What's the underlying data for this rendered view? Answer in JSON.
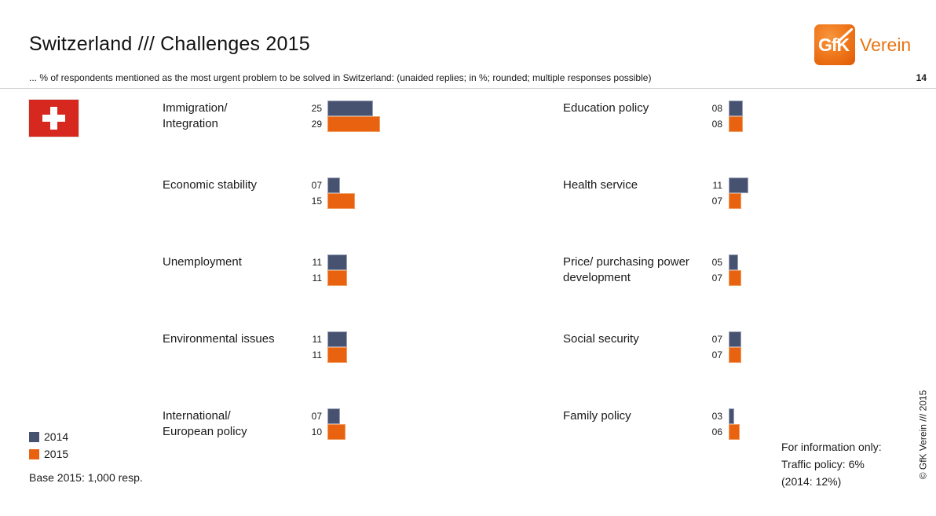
{
  "slide": {
    "title": "Switzerland /// Challenges 2015",
    "subtitle": "... % of respondents mentioned as the most urgent problem to be solved in Switzerland: (unaided replies; in %; rounded; multiple responses possible)",
    "page_number": "14"
  },
  "logo": {
    "square_text": "GfK",
    "word": "Verein"
  },
  "icons": {
    "flag": "swiss-flag-icon",
    "logo": "gfk-logo",
    "logo_slash": "diagonal-slash-icon"
  },
  "colors": {
    "series_2014": "#475271",
    "series_2015": "#E8620F",
    "logo_orange": "#E87512",
    "flag_red": "#D6281E"
  },
  "legend": {
    "year_2014": "2014",
    "year_2015": "2015"
  },
  "footnotes": {
    "base": "Base 2015: 1,000 resp.",
    "info_line1": "For information only:",
    "info_line2": "Traffic policy: 6%",
    "info_line3": "(2014: 12%)",
    "copyright": "© GfK Verein /// 2015"
  },
  "chart_data": {
    "type": "bar",
    "orientation": "horizontal",
    "unit": "%",
    "series": [
      "2014",
      "2015"
    ],
    "value_format": "zero-padded-2-digit",
    "legend_position": "bottom-left",
    "columns": {
      "left": [
        {
          "label_line1": "Immigration/",
          "label_line2": "Integration",
          "values": {
            "2014": 25,
            "2015": 29
          },
          "display": {
            "2014": "25",
            "2015": "29"
          }
        },
        {
          "label_line1": "Economic stability",
          "label_line2": "",
          "values": {
            "2014": 7,
            "2015": 15
          },
          "display": {
            "2014": "07",
            "2015": "15"
          }
        },
        {
          "label_line1": "Unemployment",
          "label_line2": "",
          "values": {
            "2014": 11,
            "2015": 11
          },
          "display": {
            "2014": "11",
            "2015": "11"
          }
        },
        {
          "label_line1": "Environmental issues",
          "label_line2": "",
          "values": {
            "2014": 11,
            "2015": 11
          },
          "display": {
            "2014": "11",
            "2015": "11"
          }
        },
        {
          "label_line1": "International/",
          "label_line2": "European policy",
          "values": {
            "2014": 7,
            "2015": 10
          },
          "display": {
            "2014": "07",
            "2015": "10"
          }
        }
      ],
      "right": [
        {
          "label_line1": "Education policy",
          "label_line2": "",
          "values": {
            "2014": 8,
            "2015": 8
          },
          "display": {
            "2014": "08",
            "2015": "08"
          }
        },
        {
          "label_line1": "Health service",
          "label_line2": "",
          "values": {
            "2014": 11,
            "2015": 7
          },
          "display": {
            "2014": "11",
            "2015": "07"
          }
        },
        {
          "label_line1": "Price/ purchasing power",
          "label_line2": "development",
          "values": {
            "2014": 5,
            "2015": 7
          },
          "display": {
            "2014": "05",
            "2015": "07"
          }
        },
        {
          "label_line1": "Social security",
          "label_line2": "",
          "values": {
            "2014": 7,
            "2015": 7
          },
          "display": {
            "2014": "07",
            "2015": "07"
          }
        },
        {
          "label_line1": "Family policy",
          "label_line2": "",
          "values": {
            "2014": 3,
            "2015": 6
          },
          "display": {
            "2014": "03",
            "2015": "06"
          }
        }
      ]
    }
  }
}
